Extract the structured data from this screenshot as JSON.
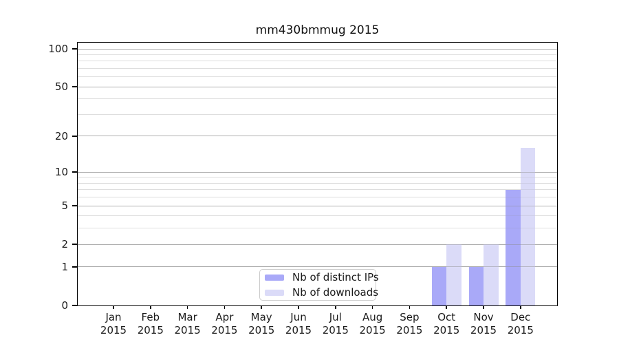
{
  "colors": {
    "ips_bar": "#a9a9f8",
    "downloads_bar": "#dbdbf8",
    "grid_major": "rgba(140,140,140,0.45)",
    "grid_minor": "rgba(140,140,140,0.16)",
    "axis": "#000000",
    "text": "#1a1a1a",
    "legend_border": "#cccccc",
    "background": "#ffffff"
  },
  "chart_data": {
    "type": "bar",
    "title": "mm430bmmug 2015",
    "categories": [
      "Jan",
      "Feb",
      "Mar",
      "Apr",
      "May",
      "Jun",
      "Jul",
      "Aug",
      "Sep",
      "Oct",
      "Nov",
      "Dec"
    ],
    "year_label": "2015",
    "series": [
      {
        "name": "Nb of distinct IPs",
        "color_key": "ips_bar",
        "values": [
          0,
          0,
          0,
          0,
          0,
          0,
          0,
          0,
          0,
          1,
          1,
          7
        ]
      },
      {
        "name": "Nb of downloads",
        "color_key": "downloads_bar",
        "values": [
          0,
          0,
          0,
          0,
          0,
          0,
          0,
          0,
          0,
          2,
          2,
          16
        ]
      }
    ],
    "xlabel": "",
    "ylabel": "",
    "yscale": "symlog-log1p",
    "ylim": [
      0,
      112
    ],
    "yticks": [
      0,
      1,
      2,
      5,
      10,
      20,
      50,
      100
    ],
    "yticks_minor": [
      3,
      4,
      6,
      7,
      8,
      9,
      30,
      40,
      60,
      70,
      80,
      90
    ],
    "grid": "horizontal-major-and-minor",
    "legend_position": "inside-bottom-center"
  }
}
